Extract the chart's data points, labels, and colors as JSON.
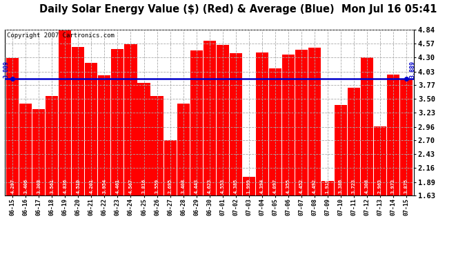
{
  "title": "Daily Solar Energy Value ($) (Red) & Average (Blue)  Mon Jul 16 05:41",
  "copyright": "Copyright 2007 Cartronics.com",
  "categories": [
    "06-15",
    "06-16",
    "06-17",
    "06-18",
    "06-19",
    "06-20",
    "06-21",
    "06-22",
    "06-23",
    "06-24",
    "06-25",
    "06-26",
    "06-27",
    "06-28",
    "06-29",
    "06-30",
    "07-01",
    "07-02",
    "07-03",
    "07-04",
    "07-05",
    "07-06",
    "07-07",
    "07-08",
    "07-09",
    "07-10",
    "07-11",
    "07-12",
    "07-13",
    "07-14",
    "07-15"
  ],
  "values": [
    4.297,
    3.406,
    3.308,
    3.561,
    4.836,
    4.51,
    4.201,
    3.954,
    4.461,
    4.567,
    3.816,
    3.559,
    2.695,
    3.408,
    4.443,
    4.623,
    4.553,
    4.385,
    1.999,
    4.394,
    4.097,
    4.355,
    4.452,
    4.492,
    1.919,
    3.386,
    3.723,
    4.308,
    2.963,
    3.973,
    3.875
  ],
  "average": 3.889,
  "bar_color": "#FF0000",
  "avg_line_color": "#0000CC",
  "bg_color": "#FFFFFF",
  "plot_bg_color": "#FFFFFF",
  "grid_color": "#AAAAAA",
  "ylim_min": 1.63,
  "ylim_max": 4.84,
  "yticks": [
    1.63,
    1.89,
    2.16,
    2.43,
    2.7,
    2.96,
    3.23,
    3.5,
    3.77,
    4.03,
    4.3,
    4.57,
    4.84
  ],
  "title_fontsize": 10.5,
  "copyright_fontsize": 6.5,
  "bar_label_fontsize": 5.2,
  "avg_label": "3.889"
}
